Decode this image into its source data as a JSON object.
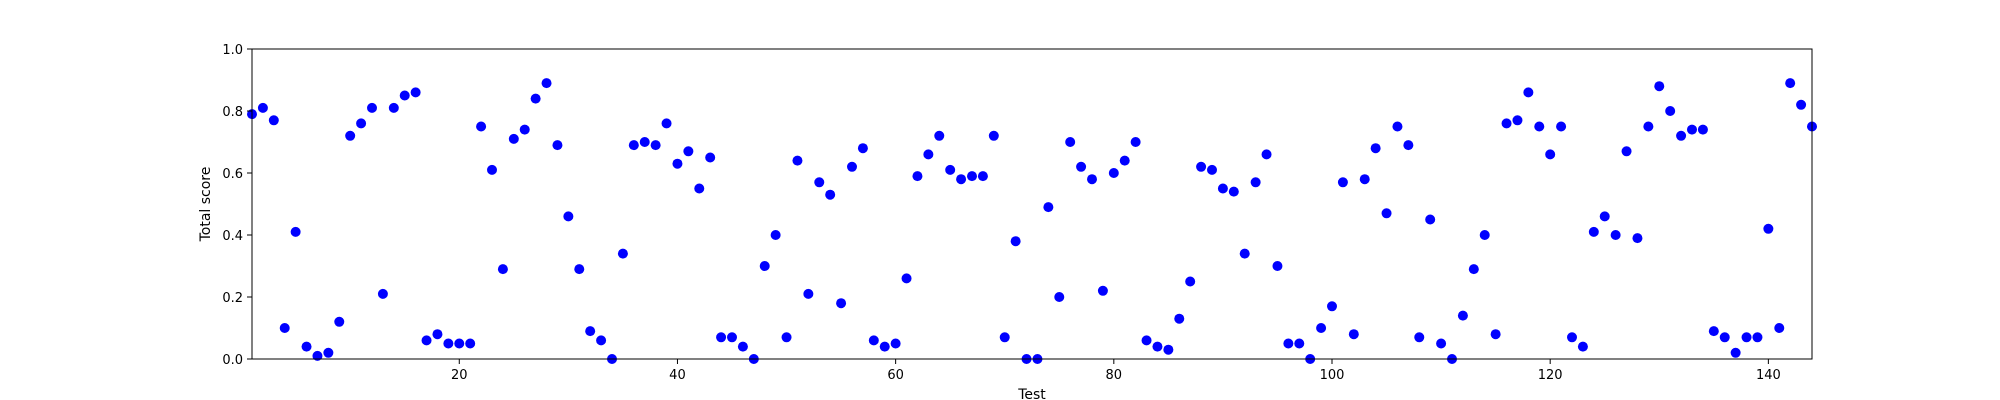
{
  "chart_data": {
    "type": "scatter",
    "title": "",
    "xlabel": "Test",
    "ylabel": "Total score",
    "xlim": [
      1,
      144
    ],
    "ylim": [
      0.0,
      1.0
    ],
    "xticks": [
      20,
      40,
      60,
      80,
      100,
      120,
      140
    ],
    "yticks": [
      "0.0",
      "0.2",
      "0.4",
      "0.6",
      "0.8",
      "1.0"
    ],
    "grid": false,
    "colors": {
      "points": "#0000ff",
      "axes": "#000000",
      "background": "#ffffff"
    },
    "series": [
      {
        "x": [
          1,
          2,
          3,
          4,
          5,
          6,
          7,
          8,
          9,
          10,
          11,
          12,
          13,
          14,
          15,
          16,
          17,
          18,
          19,
          20,
          21,
          22,
          23,
          24,
          25,
          26,
          27,
          28,
          29,
          30,
          31,
          32,
          33,
          34,
          35,
          36,
          37,
          38,
          39,
          40,
          41,
          42,
          43,
          44,
          45,
          46,
          47,
          48,
          49,
          50,
          51,
          52,
          53,
          54,
          55,
          56,
          57,
          58,
          59,
          60,
          61,
          62,
          63,
          64,
          65,
          66,
          67,
          68,
          69,
          70,
          71,
          72,
          73,
          74,
          75,
          76,
          77,
          78,
          79,
          80,
          81,
          82,
          83,
          84,
          85,
          86,
          87,
          88,
          89,
          90,
          91,
          92,
          93,
          94,
          95,
          96,
          97,
          98,
          99,
          100,
          101,
          102,
          103,
          104,
          105,
          106,
          107,
          108,
          109,
          110,
          111,
          112,
          113,
          114,
          115,
          116,
          117,
          118,
          119,
          120,
          121,
          122,
          123,
          124,
          125,
          126,
          127,
          128,
          129,
          130,
          131,
          132,
          133,
          134,
          135,
          136,
          137,
          138,
          139,
          140,
          141,
          142,
          143,
          144
        ],
        "y": [
          0.79,
          0.81,
          0.77,
          0.1,
          0.41,
          0.04,
          0.01,
          0.02,
          0.12,
          0.72,
          0.76,
          0.81,
          0.21,
          0.81,
          0.85,
          0.86,
          0.06,
          0.08,
          0.05,
          0.05,
          0.05,
          0.75,
          0.61,
          0.29,
          0.71,
          0.74,
          0.84,
          0.89,
          0.69,
          0.46,
          0.29,
          0.09,
          0.06,
          0.0,
          0.34,
          0.69,
          0.7,
          0.69,
          0.76,
          0.63,
          0.67,
          0.55,
          0.65,
          0.07,
          0.07,
          0.04,
          0.0,
          0.3,
          0.4,
          0.07,
          0.64,
          0.21,
          0.57,
          0.53,
          0.18,
          0.62,
          0.68,
          0.06,
          0.04,
          0.05,
          0.26,
          0.59,
          0.66,
          0.72,
          0.61,
          0.58,
          0.59,
          0.59,
          0.72,
          0.07,
          0.38,
          0.0,
          0.0,
          0.49,
          0.2,
          0.7,
          0.62,
          0.58,
          0.22,
          0.6,
          0.64,
          0.7,
          0.06,
          0.04,
          0.03,
          0.13,
          0.25,
          0.62,
          0.61,
          0.55,
          0.54,
          0.34,
          0.57,
          0.66,
          0.3,
          0.05,
          0.05,
          0.0,
          0.1,
          0.17,
          0.57,
          0.08,
          0.58,
          0.68,
          0.47,
          0.75,
          0.69,
          0.07,
          0.45,
          0.05,
          0.0,
          0.14,
          0.29,
          0.4,
          0.08,
          0.76,
          0.77,
          0.86,
          0.75,
          0.66,
          0.75,
          0.07,
          0.04,
          0.41,
          0.46,
          0.4,
          0.67,
          0.39,
          0.75,
          0.88,
          0.8,
          0.72,
          0.74,
          0.74,
          0.09,
          0.07,
          0.02,
          0.07,
          0.07,
          0.42,
          0.1,
          0.89,
          0.82,
          0.75
        ]
      }
    ]
  }
}
